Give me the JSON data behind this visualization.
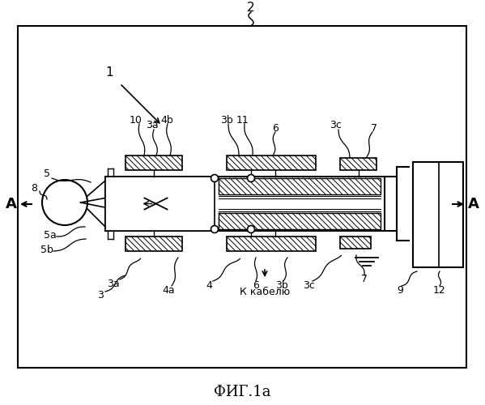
{
  "figsize": [
    5.99,
    5.0
  ],
  "dpi": 100,
  "bg": "#ffffff",
  "lc": "#000000",
  "labels": {
    "fig_title": "ФИГ.1а",
    "2": "2",
    "1": "1",
    "A": "A",
    "8": "8",
    "5": "5",
    "10": "10",
    "3a": "3a",
    "4b": "4b",
    "3b": "3b",
    "11": "11",
    "6": "6",
    "3c": "3c",
    "7": "7",
    "5a": "5a",
    "5b": "5b",
    "4a": "4a",
    "4": "4",
    "3": "3",
    "9": "9",
    "12": "12",
    "cable": "К кабелю"
  }
}
